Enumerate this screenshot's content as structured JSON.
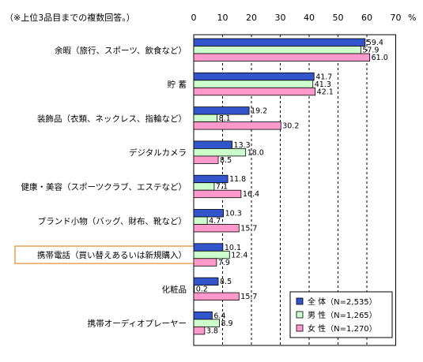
{
  "chart_data": {
    "type": "bar",
    "orientation": "horizontal",
    "note": "（※上位3品目までの複数回答。）",
    "unit": "%",
    "xlim": [
      0,
      70
    ],
    "ticks": [
      0,
      10,
      20,
      30,
      40,
      50,
      60,
      70
    ],
    "grid": "vertical dashed",
    "legend_position": "bottom-right",
    "categories": [
      "余暇（旅行、スポーツ、飲食など）",
      "貯 蓄",
      "装飾品（衣類、ネックレス、指輪など）",
      "デジタルカメラ",
      "健康・美容（スポーツクラブ、エステなど）",
      "ブランド小物（バッグ、財布、靴など）",
      "携帯電話（買い替えあるいは新規購入）",
      "化粧品",
      "携帯オーディオプレーヤー"
    ],
    "highlighted_category": "携帯電話（買い替えあるいは新規購入）",
    "series": [
      {
        "name": "全 体（N=2,535）",
        "color": "#3355cc",
        "values": [
          59.4,
          41.7,
          19.2,
          13.3,
          11.8,
          10.3,
          10.1,
          8.5,
          6.4
        ]
      },
      {
        "name": "男 性（N=1,265）",
        "color": "#ccffcc",
        "values": [
          57.9,
          41.3,
          8.1,
          18.0,
          7.1,
          4.7,
          12.4,
          0.2,
          8.9
        ]
      },
      {
        "name": "女 性（N=1,270）",
        "color": "#ff99cc",
        "values": [
          61.0,
          42.1,
          30.2,
          8.5,
          16.4,
          15.7,
          7.9,
          15.7,
          3.8
        ]
      }
    ]
  }
}
